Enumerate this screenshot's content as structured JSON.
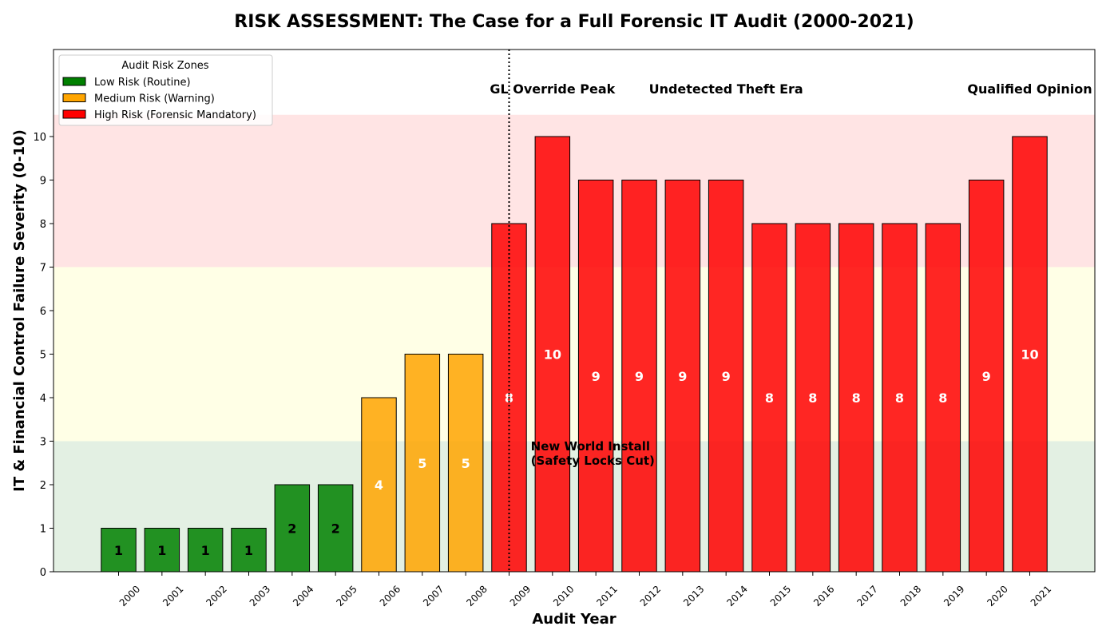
{
  "chart_data": {
    "type": "bar",
    "title": "RISK ASSESSMENT: The Case for a Full Forensic IT Audit (2000-2021)",
    "xlabel": "Audit Year",
    "ylabel": "IT & Financial Control Failure Severity (0-10)",
    "categories": [
      "2000",
      "2001",
      "2002",
      "2003",
      "2004",
      "2005",
      "2006",
      "2007",
      "2008",
      "2009",
      "2010",
      "2011",
      "2012",
      "2013",
      "2014",
      "2015",
      "2016",
      "2017",
      "2018",
      "2019",
      "2020",
      "2021"
    ],
    "values": [
      1,
      1,
      1,
      1,
      2,
      2,
      4,
      5,
      5,
      8,
      10,
      9,
      9,
      9,
      9,
      8,
      8,
      8,
      8,
      8,
      9,
      10
    ],
    "bar_risk": [
      "low",
      "low",
      "low",
      "low",
      "low",
      "low",
      "medium",
      "medium",
      "medium",
      "high",
      "high",
      "high",
      "high",
      "high",
      "high",
      "high",
      "high",
      "high",
      "high",
      "high",
      "high",
      "high"
    ],
    "xlim": [
      1998.5,
      2022.5
    ],
    "ylim": [
      0,
      12
    ],
    "yticks": [
      0,
      1,
      2,
      3,
      4,
      5,
      6,
      7,
      8,
      9,
      10
    ],
    "grid": false,
    "zones": [
      {
        "key": "low",
        "from": 0,
        "to": 3,
        "band_color": "#e3f0e3",
        "bar_color": "#008000"
      },
      {
        "key": "medium",
        "from": 3,
        "to": 7,
        "band_color": "#ffffe6",
        "bar_color": "#ffa500"
      },
      {
        "key": "high",
        "from": 7,
        "to": 10.5,
        "band_color": "#ffe4e4",
        "bar_color": "#ff0000"
      }
    ],
    "legend": {
      "title": "Audit Risk Zones",
      "placement": "top-left",
      "entries": [
        {
          "label": "Low Risk (Routine)",
          "color": "#008000"
        },
        {
          "label": "Medium Risk (Warning)",
          "color": "#ffa500"
        },
        {
          "label": "High Risk (Forensic Mandatory)",
          "color": "#ff0000"
        }
      ]
    },
    "vline": {
      "x": 2009,
      "style": "dotted"
    },
    "annotations": [
      {
        "text": "GL Override Peak",
        "x": 2010,
        "y": 11.1,
        "align": "center"
      },
      {
        "text": "Undetected Theft Era",
        "x": 2014,
        "y": 11.1,
        "align": "center"
      },
      {
        "text": "Qualified Opinion",
        "x": 2021,
        "y": 11.1,
        "align": "center"
      },
      {
        "text": "New World Install",
        "text2": "(Safety Locks Cut)",
        "x": 2009.5,
        "y": 2.75,
        "align": "left"
      }
    ]
  }
}
